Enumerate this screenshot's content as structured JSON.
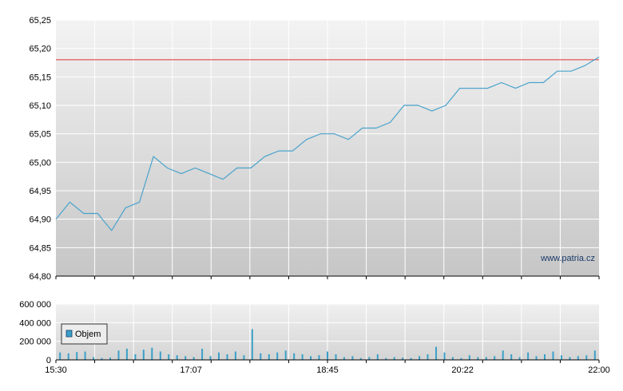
{
  "watermark": "www.patria.cz",
  "colors": {
    "price_line": "#4aa3cc",
    "reference_line": "#e03030",
    "volume_bar": "#3aa0c8",
    "axis": "#000000"
  },
  "chart_data": [
    {
      "type": "line",
      "name": "price",
      "x_ticks": [
        "15:30",
        "17:07",
        "18:45",
        "20:22",
        "22:00"
      ],
      "ylim": [
        64.8,
        65.25
      ],
      "y_ticks": [
        "64,80",
        "64,85",
        "64,90",
        "64,95",
        "65,00",
        "65,05",
        "65,10",
        "65,15",
        "65,20",
        "65,25"
      ],
      "reference_line": 65.18,
      "grid": true,
      "x": [
        "15:30",
        "15:40",
        "15:50",
        "16:00",
        "16:10",
        "16:20",
        "16:30",
        "16:40",
        "16:50",
        "17:00",
        "17:10",
        "17:20",
        "17:30",
        "17:40",
        "17:50",
        "18:00",
        "18:10",
        "18:20",
        "18:30",
        "18:40",
        "18:50",
        "19:00",
        "19:10",
        "19:20",
        "19:30",
        "19:40",
        "19:50",
        "20:00",
        "20:10",
        "20:20",
        "20:30",
        "20:40",
        "20:50",
        "21:00",
        "21:10",
        "21:20",
        "21:30",
        "21:40",
        "21:50",
        "22:00"
      ],
      "values": [
        64.9,
        64.93,
        64.91,
        64.91,
        64.88,
        64.92,
        64.93,
        65.01,
        64.99,
        64.98,
        64.99,
        64.98,
        64.97,
        64.99,
        64.99,
        65.01,
        65.02,
        65.02,
        65.04,
        65.05,
        65.05,
        65.04,
        65.06,
        65.06,
        65.07,
        65.1,
        65.1,
        65.09,
        65.1,
        65.13,
        65.13,
        65.13,
        65.14,
        65.13,
        65.14,
        65.14,
        65.16,
        65.16,
        65.17,
        65.185
      ]
    },
    {
      "type": "bar",
      "name": "volume",
      "legend": "Objem",
      "ylim": [
        0,
        600000
      ],
      "y_ticks": [
        "0",
        "200 000",
        "400 000",
        "600 000"
      ],
      "x_ticks": [
        "15:30",
        "17:07",
        "18:45",
        "20:22",
        "22:00"
      ],
      "grid": true,
      "x": [
        "15:33",
        "15:39",
        "15:45",
        "15:51",
        "15:57",
        "16:03",
        "16:09",
        "16:15",
        "16:21",
        "16:27",
        "16:33",
        "16:39",
        "16:45",
        "16:51",
        "16:57",
        "17:03",
        "17:09",
        "17:15",
        "17:21",
        "17:27",
        "17:33",
        "17:39",
        "17:45",
        "17:51",
        "17:57",
        "18:03",
        "18:09",
        "18:15",
        "18:21",
        "18:27",
        "18:33",
        "18:39",
        "18:45",
        "18:51",
        "18:57",
        "19:03",
        "19:09",
        "19:15",
        "19:21",
        "19:27",
        "19:33",
        "19:39",
        "19:45",
        "19:51",
        "19:57",
        "20:03",
        "20:09",
        "20:15",
        "20:21",
        "20:27",
        "20:33",
        "20:39",
        "20:45",
        "20:51",
        "20:57",
        "21:03",
        "21:09",
        "21:15",
        "21:21",
        "21:27",
        "21:33",
        "21:39",
        "21:45",
        "21:51",
        "21:57"
      ],
      "values": [
        80000,
        70000,
        85000,
        90000,
        30000,
        20000,
        25000,
        100000,
        120000,
        60000,
        110000,
        130000,
        90000,
        60000,
        50000,
        40000,
        30000,
        120000,
        40000,
        80000,
        60000,
        90000,
        50000,
        330000,
        70000,
        60000,
        80000,
        100000,
        70000,
        60000,
        40000,
        50000,
        90000,
        60000,
        30000,
        40000,
        20000,
        30000,
        60000,
        20000,
        30000,
        25000,
        20000,
        40000,
        60000,
        140000,
        80000,
        30000,
        20000,
        50000,
        30000,
        30000,
        40000,
        100000,
        60000,
        30000,
        80000,
        40000,
        60000,
        90000,
        50000,
        30000,
        40000,
        50000,
        100000
      ]
    }
  ]
}
